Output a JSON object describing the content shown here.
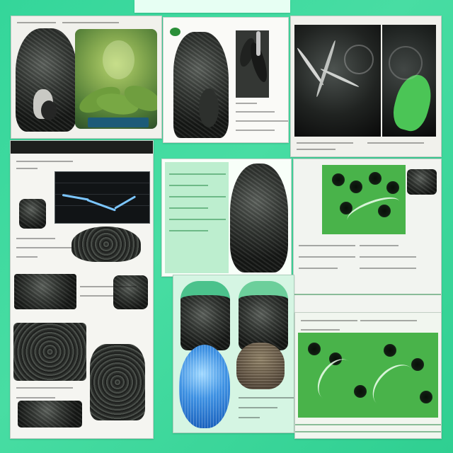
{
  "composition": {
    "background_color": "#3fd99b",
    "accent_green": "#5abf4a",
    "dark_panel": "#1d1f1d",
    "paper": "#f1f1ec",
    "blue_specimen": "#3f92e3"
  },
  "panels": [
    {
      "name": "top-left-specimen-sheet",
      "icon": "specimen-photo-icon"
    },
    {
      "name": "top-center-specimen-sheet",
      "icon": "specimen-photo-icon"
    },
    {
      "name": "top-right-micrograph-sheet",
      "icon": "microscope-icon"
    },
    {
      "name": "left-chart-report-sheet",
      "icon": "line-chart-icon"
    },
    {
      "name": "center-green-notes-sheet",
      "icon": "leaf-icon"
    },
    {
      "name": "right-green-texture-sheet",
      "icon": "texture-icon"
    },
    {
      "name": "center-specimen-grid",
      "icon": "specimen-photo-icon"
    },
    {
      "name": "lower-right-green-sheet",
      "icon": "texture-icon"
    }
  ]
}
